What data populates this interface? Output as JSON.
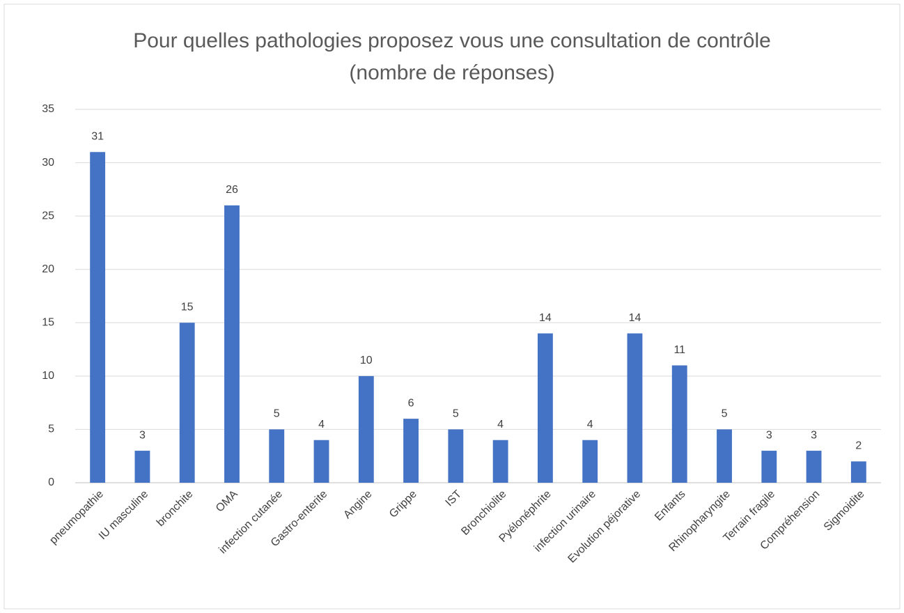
{
  "chart_data": {
    "type": "bar",
    "title": "Pour quelles pathologies proposez vous une consultation de contrôle (nombre de réponses)",
    "categories": [
      "pneumopathie",
      "IU masculine",
      "bronchite",
      "OMA",
      "infection cutanée",
      "Gastro-enterite",
      "Angine",
      "Grippe",
      "IST",
      "Bronchiolite",
      "Pyélonéphrite",
      "infection urinaire",
      "Evolution péjorative",
      "Enfants",
      "Rhinopharyngite",
      "Terrain fragile",
      "Compréhension",
      "Sigmoidite"
    ],
    "values": [
      31,
      3,
      15,
      26,
      5,
      4,
      10,
      6,
      5,
      4,
      14,
      4,
      14,
      11,
      5,
      3,
      3,
      2
    ],
    "color": "#4472c4",
    "ylim": [
      0,
      35
    ],
    "yticks": [
      0,
      5,
      10,
      15,
      20,
      25,
      30,
      35
    ],
    "grid": true
  }
}
